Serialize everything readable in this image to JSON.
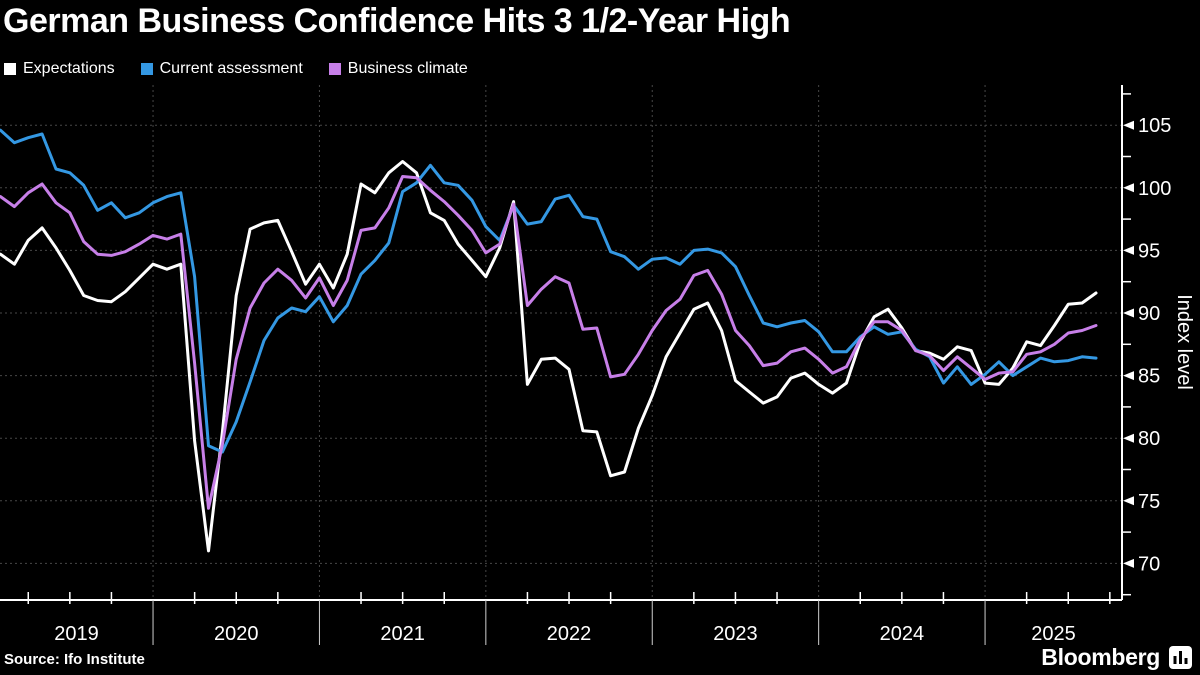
{
  "header": {
    "title": "German Business Confidence Hits 3 1/2-Year High"
  },
  "legend": {
    "items": [
      {
        "label": "Expectations",
        "color": "#ffffff"
      },
      {
        "label": "Current assessment",
        "color": "#3498e3"
      },
      {
        "label": "Business climate",
        "color": "#c77fe8"
      }
    ]
  },
  "axes": {
    "y_axis_label": "Index level",
    "y_ticks": [
      105,
      100,
      95,
      90,
      85,
      80,
      75,
      70
    ],
    "y_minor_ticks": [
      107.5,
      102.5,
      97.5,
      92.5,
      87.5,
      82.5,
      77.5,
      72.5,
      67.5
    ],
    "x_years": [
      "2019",
      "2020",
      "2021",
      "2022",
      "2023",
      "2024",
      "2025"
    ]
  },
  "footer": {
    "source": "Source: Ifo Institute",
    "brand": "Bloomberg"
  },
  "colors": {
    "background": "#000000",
    "grid": "#474747",
    "axis": "#ffffff",
    "text": "#ffffff"
  },
  "chart_data": {
    "type": "line",
    "title": "German Business Confidence Hits 3 1/2-Year High",
    "ylabel": "Index level",
    "ylim": [
      67,
      108.5
    ],
    "grid": "dotted",
    "legend_position": "top-left",
    "source": "Ifo Institute",
    "x_unit": "month",
    "months": [
      "2019-01",
      "2019-02",
      "2019-03",
      "2019-04",
      "2019-05",
      "2019-06",
      "2019-07",
      "2019-08",
      "2019-09",
      "2019-10",
      "2019-11",
      "2019-12",
      "2020-01",
      "2020-02",
      "2020-03",
      "2020-04",
      "2020-05",
      "2020-06",
      "2020-07",
      "2020-08",
      "2020-09",
      "2020-10",
      "2020-11",
      "2020-12",
      "2021-01",
      "2021-02",
      "2021-03",
      "2021-04",
      "2021-05",
      "2021-06",
      "2021-07",
      "2021-08",
      "2021-09",
      "2021-10",
      "2021-11",
      "2021-12",
      "2022-01",
      "2022-02",
      "2022-03",
      "2022-04",
      "2022-05",
      "2022-06",
      "2022-07",
      "2022-08",
      "2022-09",
      "2022-10",
      "2022-11",
      "2022-12",
      "2023-01",
      "2023-02",
      "2023-03",
      "2023-04",
      "2023-05",
      "2023-06",
      "2023-07",
      "2023-08",
      "2023-09",
      "2023-10",
      "2023-11",
      "2023-12",
      "2024-01",
      "2024-02",
      "2024-03",
      "2024-04",
      "2024-05",
      "2024-06",
      "2024-07",
      "2024-08",
      "2024-09",
      "2024-10",
      "2024-11",
      "2024-12",
      "2025-01",
      "2025-02",
      "2025-03",
      "2025-04",
      "2025-05",
      "2025-06",
      "2025-07",
      "2025-08"
    ],
    "series": [
      {
        "name": "Expectations",
        "color": "#ffffff",
        "values": [
          94.7,
          93.9,
          95.8,
          96.8,
          95.2,
          93.4,
          91.4,
          91.0,
          90.9,
          91.7,
          92.8,
          93.9,
          93.5,
          93.9,
          79.8,
          71.0,
          80.5,
          91.4,
          96.7,
          97.2,
          97.4,
          94.9,
          92.3,
          93.9,
          92.0,
          94.7,
          100.3,
          99.6,
          101.2,
          102.1,
          101.2,
          98.0,
          97.4,
          95.5,
          94.2,
          92.9,
          95.2,
          98.9,
          84.3,
          86.3,
          86.4,
          85.5,
          80.6,
          80.5,
          77.0,
          77.3,
          80.8,
          83.4,
          86.5,
          88.4,
          90.3,
          90.8,
          88.6,
          84.6,
          83.7,
          82.8,
          83.3,
          84.8,
          85.2,
          84.3,
          83.6,
          84.4,
          87.7,
          89.7,
          90.3,
          88.8,
          87.0,
          86.8,
          86.3,
          87.3,
          87.0,
          84.4,
          84.3,
          85.6,
          87.7,
          87.4,
          89.0,
          90.7,
          90.8,
          91.6
        ]
      },
      {
        "name": "Current assessment",
        "color": "#3498e3",
        "values": [
          104.6,
          103.6,
          104.0,
          104.3,
          101.5,
          101.2,
          100.2,
          98.2,
          98.8,
          97.6,
          98.0,
          98.8,
          99.3,
          99.6,
          92.9,
          79.4,
          78.9,
          81.3,
          84.5,
          87.8,
          89.6,
          90.4,
          90.1,
          91.3,
          89.3,
          90.6,
          93.1,
          94.2,
          95.6,
          99.7,
          100.4,
          101.8,
          100.4,
          100.2,
          99.0,
          96.9,
          95.8,
          98.6,
          97.1,
          97.3,
          99.1,
          99.4,
          97.7,
          97.5,
          94.9,
          94.5,
          93.5,
          94.3,
          94.4,
          93.9,
          95.0,
          95.1,
          94.8,
          93.7,
          91.4,
          89.2,
          88.9,
          89.2,
          89.4,
          88.5,
          86.9,
          86.9,
          88.1,
          88.9,
          88.3,
          88.5,
          87.1,
          86.5,
          84.4,
          85.7,
          84.3,
          85.1,
          86.1,
          85.0,
          85.7,
          86.4,
          86.1,
          86.2,
          86.5,
          86.4
        ]
      },
      {
        "name": "Business climate",
        "color": "#c77fe8",
        "values": [
          99.3,
          98.5,
          99.6,
          100.3,
          98.8,
          98.0,
          95.7,
          94.7,
          94.6,
          94.9,
          95.5,
          96.2,
          95.9,
          96.3,
          86.0,
          74.4,
          79.5,
          86.3,
          90.4,
          92.4,
          93.5,
          92.6,
          91.2,
          92.8,
          90.6,
          92.6,
          96.6,
          96.8,
          98.4,
          100.9,
          100.8,
          99.8,
          98.9,
          97.8,
          96.6,
          94.8,
          95.5,
          98.7,
          90.6,
          91.9,
          92.9,
          92.4,
          88.7,
          88.8,
          84.9,
          85.1,
          86.7,
          88.6,
          90.2,
          91.1,
          93.0,
          93.4,
          91.5,
          88.6,
          87.4,
          85.8,
          86.0,
          86.9,
          87.2,
          86.3,
          85.2,
          85.7,
          87.9,
          89.3,
          89.3,
          88.6,
          87.0,
          86.6,
          85.4,
          86.5,
          85.6,
          84.7,
          85.2,
          85.3,
          86.7,
          86.9,
          87.5,
          88.4,
          88.6,
          89.0
        ]
      }
    ]
  }
}
